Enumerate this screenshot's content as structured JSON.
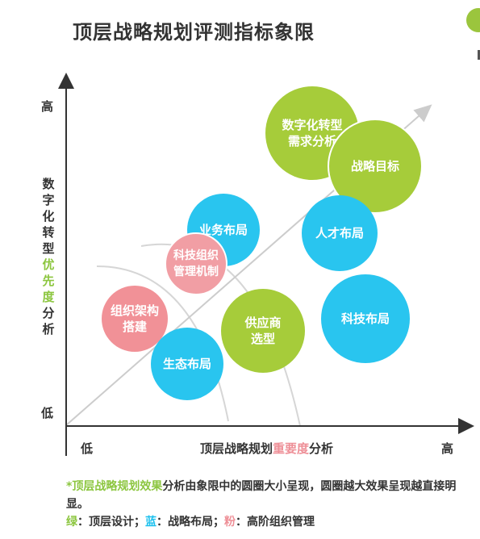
{
  "title": "顶层战略规划评测指标象限",
  "y_axis": {
    "high": "高",
    "low": "低",
    "label_prefix": "数字化转型",
    "label_highlight": "优先度",
    "label_suffix": "分析"
  },
  "x_axis": {
    "low": "低",
    "high": "高",
    "label_prefix": "顶层战略规划",
    "label_highlight": "重要度",
    "label_suffix": "分析"
  },
  "circles": [
    {
      "id": "digital-demand",
      "label": "数字化转型\n需求分析",
      "category": "green"
    },
    {
      "id": "strategic-goal",
      "label": "战略目标",
      "category": "green"
    },
    {
      "id": "business-layout",
      "label": "业务布局",
      "category": "blue"
    },
    {
      "id": "tech-org",
      "label": "科技组织\n管理机制",
      "category": "pink"
    },
    {
      "id": "talent-layout",
      "label": "人才布局",
      "category": "blue"
    },
    {
      "id": "org-structure",
      "label": "组织架构\n搭建",
      "category": "pink"
    },
    {
      "id": "supplier",
      "label": "供应商\n选型",
      "category": "green"
    },
    {
      "id": "tech-layout",
      "label": "科技布局",
      "category": "blue"
    },
    {
      "id": "ecology-layout",
      "label": "生态布局",
      "category": "blue"
    }
  ],
  "note": {
    "star": "*",
    "highlight": "顶层战略规划效果",
    "text": "分析由象限中的圆圈大小呈现，圆圈越大效果呈现越直接明显。",
    "legend": [
      {
        "key": "绿",
        "sep": "：",
        "value": "顶层设计",
        "color": "#8cc63f"
      },
      {
        "key": "蓝",
        "sep": "：",
        "value": "战略布局",
        "color": "#1ec1ee"
      },
      {
        "key": "粉",
        "sep": "：",
        "value": "高阶组织管理",
        "color": "#ee8f97"
      }
    ],
    "delimiter": "；"
  },
  "colors": {
    "green": "#a6cc3a",
    "blue": "#29c5ef",
    "pink": "#f19197",
    "text": "#333333"
  }
}
